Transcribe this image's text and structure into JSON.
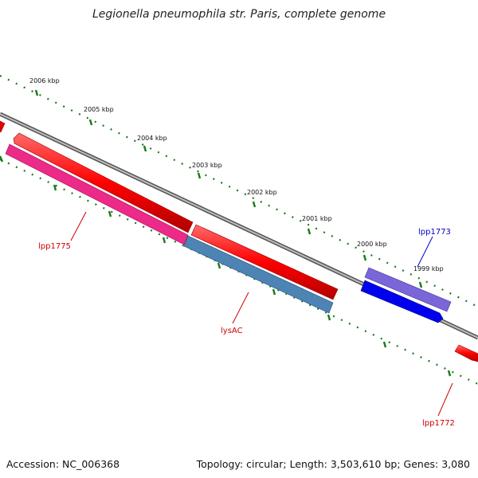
{
  "title": "Legionella pneumophila str. Paris, complete genome",
  "footer": {
    "accession": "Accession: NC_006368",
    "stats": "Topology: circular; Length: 3,503,610 bp; Genes: 3,080"
  },
  "ticks": [
    {
      "label": "2006 kbp"
    },
    {
      "label": "2005 kbp"
    },
    {
      "label": "2004 kbp"
    },
    {
      "label": "2003 kbp"
    },
    {
      "label": "2002 kbp"
    },
    {
      "label": "2001 kbp"
    },
    {
      "label": "2000 kbp"
    },
    {
      "label": "1999 kbp"
    }
  ],
  "genes": [
    {
      "name": "lpp1775",
      "color": "#e8207a"
    },
    {
      "name": "lysAC",
      "color": "#4a7fae"
    },
    {
      "name": "lpp1773",
      "color": "#6a5acd"
    },
    {
      "name": "lpp1772",
      "color": "#dd0000"
    }
  ],
  "colors": {
    "forward_strand": "#ff0000",
    "reverse_blue": "#0000ee",
    "backbone": "#888888",
    "tick_green": "#1a7a1a",
    "label_red": "#cc0000",
    "label_blue": "#0000cc"
  }
}
